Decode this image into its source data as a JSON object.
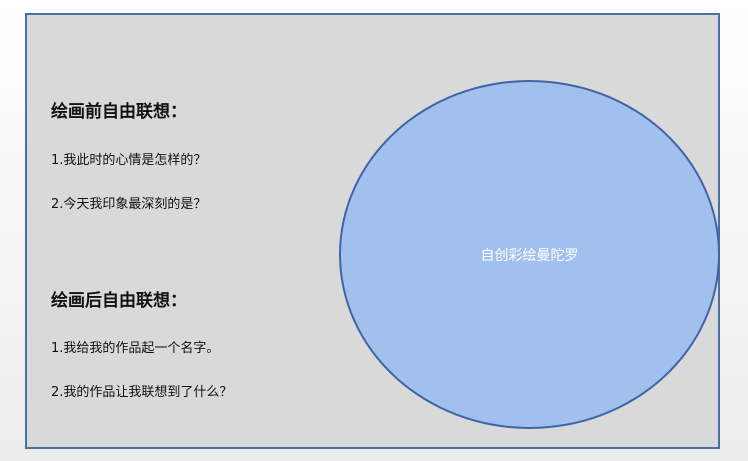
{
  "before": {
    "title": "绘画前自由联想：",
    "items": [
      "1.我此时的心情是怎样的？",
      "2.今天我印象最深刻的是？"
    ]
  },
  "after": {
    "title": "绘画后自由联想：",
    "items": [
      "1.我给我的作品起一个名字。",
      "2.我的作品让我联想到了什么？"
    ]
  },
  "mandala": {
    "label": "自创彩绘曼陀罗",
    "fill_color": "#a2c0ee",
    "stroke_color": "#3f64a8"
  },
  "panel": {
    "border_color": "#4a6fa5",
    "background_color": "#d9d9d9"
  }
}
